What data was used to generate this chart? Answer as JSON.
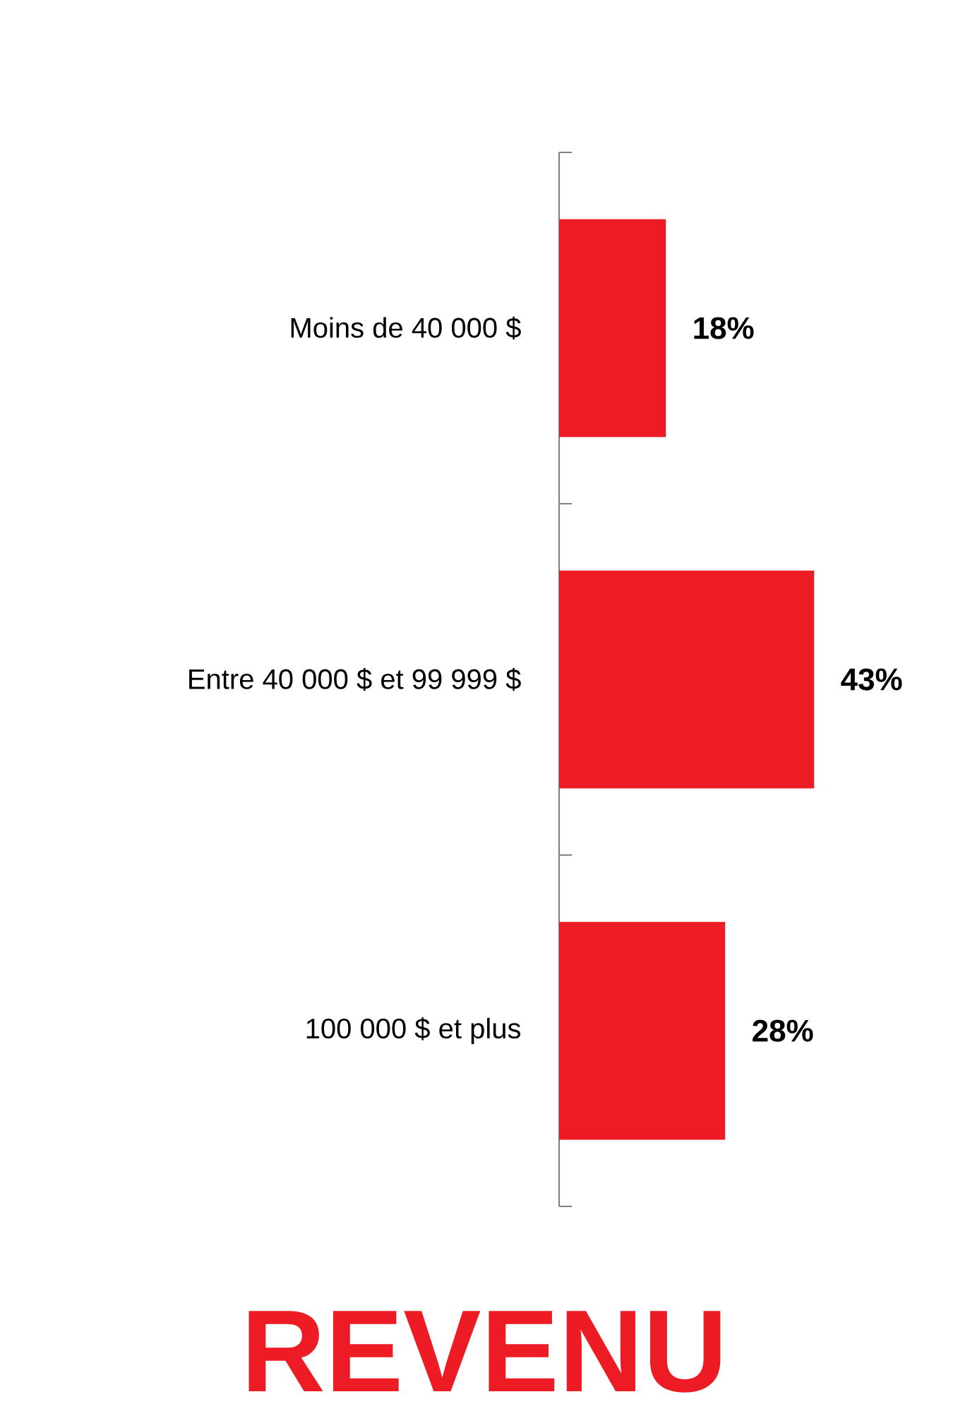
{
  "chart_data": {
    "type": "bar",
    "orientation": "horizontal",
    "title": "REVENU",
    "categories": [
      "Moins de 40 000 $",
      "Entre 40 000 $ et 99 999 $",
      "100 000 $ et plus"
    ],
    "values": [
      18,
      43,
      28
    ],
    "color": "#ed1c24",
    "value_labels": [
      "18%",
      "43%",
      "28%"
    ]
  }
}
